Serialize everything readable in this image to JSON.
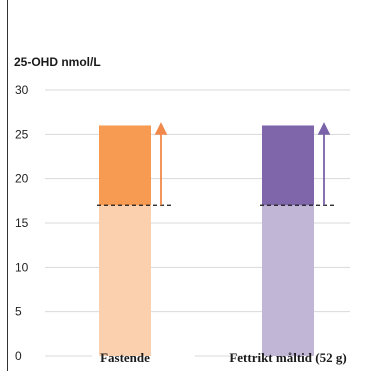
{
  "chart_data": {
    "type": "bar",
    "title": "",
    "ylabel": "25-OHD nmol/L",
    "xlabel": "",
    "ylim": [
      0,
      30
    ],
    "yticks": [
      0,
      5,
      10,
      15,
      20,
      25,
      30
    ],
    "grid": true,
    "categories": [
      "Fastende",
      "Fettrikt måltid (52 g)"
    ],
    "series": [
      {
        "values": [
          17,
          17
        ]
      },
      {
        "values": [
          9,
          9
        ]
      }
    ],
    "baseline_marker": [
      17,
      17
    ],
    "top_value": [
      26,
      26
    ],
    "colors": {
      "Fastende": {
        "base": "#fad0ae",
        "increase": "#f79a52",
        "arrow": "#f0894a"
      },
      "Fettrikt måltid (52 g)": {
        "base": "#c1b6d6",
        "increase": "#7f66aa",
        "arrow": "#7a63a8"
      }
    }
  }
}
